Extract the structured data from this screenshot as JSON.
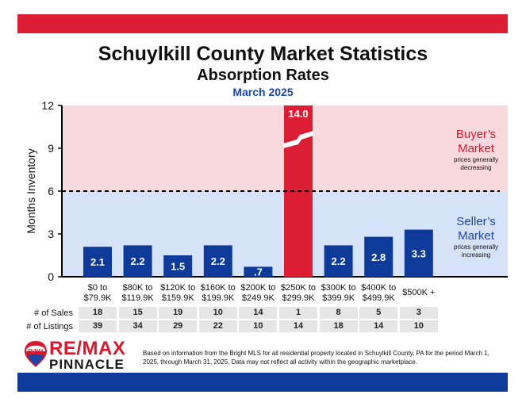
{
  "header": {
    "title": "Schuylkill County Market Statistics",
    "subtitle": "Absorption Rates",
    "period": "March 2025"
  },
  "colors": {
    "red": "#dc1e35",
    "blue": "#0e3a9a",
    "buyer_bg": "#f8d9dd",
    "seller_bg": "#d5e2f7",
    "brand_red": "#d9182d",
    "brand_blue": "#1a47a6"
  },
  "chart_data": {
    "type": "bar",
    "ylabel": "Months Inventory",
    "ylim": [
      0,
      12
    ],
    "yticks": [
      0,
      3,
      6,
      9,
      12
    ],
    "threshold": 6,
    "categories": [
      [
        "$0 to",
        "$79.9K"
      ],
      [
        "$80K to",
        "$119.9K"
      ],
      [
        "$120K to",
        "$159.9K"
      ],
      [
        "$160K to",
        "$199.9K"
      ],
      [
        "$200K to",
        "$249.9K"
      ],
      [
        "$250K to",
        "$299.9K"
      ],
      [
        "$300K to",
        "$399.9K"
      ],
      [
        "$400K to",
        "$499.9K"
      ],
      [
        "$500K +"
      ]
    ],
    "values": [
      2.1,
      2.2,
      1.5,
      2.2,
      0.7,
      14.0,
      2.2,
      2.8,
      3.3
    ],
    "value_labels": [
      "2.1",
      "2.2",
      "1.5",
      "2.2",
      ".7",
      "14.0",
      "2.2",
      "2.8",
      "3.3"
    ],
    "highlight_index": 5,
    "buyer": {
      "title": [
        "Buyer’s",
        "Market"
      ],
      "note": [
        "prices generally",
        "decreasing"
      ]
    },
    "seller": {
      "title": [
        "Seller’s",
        "Market"
      ],
      "note": [
        "prices generally",
        "increasing"
      ]
    }
  },
  "table": {
    "sales_label": "# of Sales",
    "listings_label": "# of Listings",
    "sales": [
      "18",
      "15",
      "19",
      "10",
      "14",
      "1",
      "8",
      "5",
      "3"
    ],
    "listings": [
      "39",
      "34",
      "29",
      "22",
      "10",
      "14",
      "18",
      "14",
      "10"
    ]
  },
  "logo": {
    "badge": "RE/MAX",
    "main": "RE/MAX",
    "sub": "PINNACLE"
  },
  "footnote": "Based on information from the Bright MLS for all residential property located in Schuylkill County, PA for the period March 1, 2025, through March 31, 2025.  Data may not reflect all activity within the geographic marketplace."
}
